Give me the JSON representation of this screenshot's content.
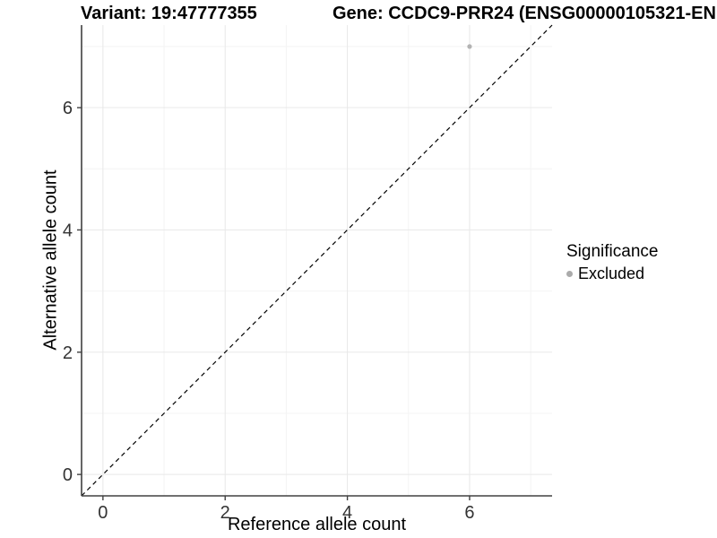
{
  "header": {
    "variant_title": "Variant: 19:47777355",
    "gene_title": "Gene: CCDC9-PRR24 (ENSG00000105321-EN"
  },
  "chart_data": {
    "type": "scatter",
    "xlabel": "Reference allele count",
    "ylabel": "Alternative allele count",
    "xlim": [
      -0.35,
      7.35
    ],
    "ylim": [
      -0.35,
      7.35
    ],
    "x_ticks": [
      0,
      2,
      4,
      6
    ],
    "y_ticks": [
      0,
      2,
      4,
      6
    ],
    "x_minor_gridlines": [
      1,
      3,
      5,
      7
    ],
    "y_minor_gridlines": [
      1,
      3,
      5,
      7
    ],
    "grid": true,
    "reference_line": {
      "slope": 1,
      "intercept": 0,
      "style": "dashed",
      "color": "#000000"
    },
    "series": [
      {
        "name": "Excluded",
        "color": "#b3b3b3",
        "points": [
          {
            "x": 6,
            "y": 7
          }
        ]
      }
    ],
    "legend": {
      "position": "right",
      "title": "Significance",
      "items": [
        {
          "label": "Excluded",
          "color": "#ababab"
        }
      ]
    },
    "colors": {
      "axis_line": "#404040",
      "grid_major": "#e8e8e8",
      "grid_minor": "#f4f4f4",
      "tick_text": "#333333"
    }
  }
}
